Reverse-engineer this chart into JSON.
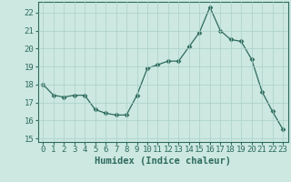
{
  "x": [
    0,
    1,
    2,
    3,
    4,
    5,
    6,
    7,
    8,
    9,
    10,
    11,
    12,
    13,
    14,
    15,
    16,
    17,
    18,
    19,
    20,
    21,
    22,
    23
  ],
  "y": [
    18.0,
    17.4,
    17.3,
    17.4,
    17.4,
    16.6,
    16.4,
    16.3,
    16.3,
    17.4,
    18.9,
    19.1,
    19.3,
    19.3,
    20.1,
    20.9,
    22.3,
    21.0,
    20.5,
    20.4,
    19.4,
    17.6,
    16.5,
    15.5
  ],
  "ylim": [
    14.8,
    22.6
  ],
  "yticks": [
    15,
    16,
    17,
    18,
    19,
    20,
    21,
    22
  ],
  "xticks": [
    0,
    1,
    2,
    3,
    4,
    5,
    6,
    7,
    8,
    9,
    10,
    11,
    12,
    13,
    14,
    15,
    16,
    17,
    18,
    19,
    20,
    21,
    22,
    23
  ],
  "xlabel": "Humidex (Indice chaleur)",
  "line_color": "#2e6b5e",
  "marker": "D",
  "marker_size": 2.5,
  "bg_color": "#cce8e0",
  "grid_color": "#aad0c8",
  "tick_fontsize": 6.5,
  "xlabel_fontsize": 7.5
}
